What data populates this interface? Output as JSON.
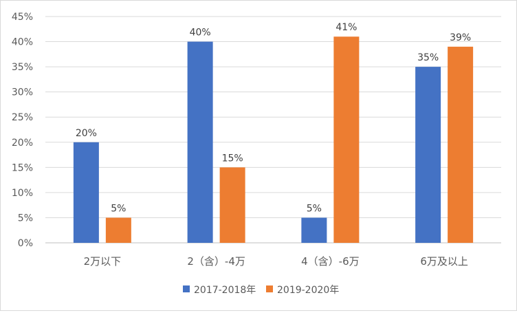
{
  "chart_data": {
    "type": "bar",
    "categories": [
      "2万以下",
      "2（含）-4万",
      "4（含）-6万",
      "6万及以上"
    ],
    "series": [
      {
        "name": "2017-2018年",
        "values": [
          20,
          40,
          5,
          35
        ],
        "color": "#4472c4"
      },
      {
        "name": "2019-2020年",
        "values": [
          5,
          15,
          41,
          39
        ],
        "color": "#ed7d31"
      }
    ],
    "y_ticks": [
      "0%",
      "5%",
      "10%",
      "15%",
      "20%",
      "25%",
      "30%",
      "35%",
      "40%",
      "45%"
    ],
    "ylim": [
      0,
      45
    ],
    "unit": "%",
    "grid": true,
    "legend_position": "bottom"
  }
}
